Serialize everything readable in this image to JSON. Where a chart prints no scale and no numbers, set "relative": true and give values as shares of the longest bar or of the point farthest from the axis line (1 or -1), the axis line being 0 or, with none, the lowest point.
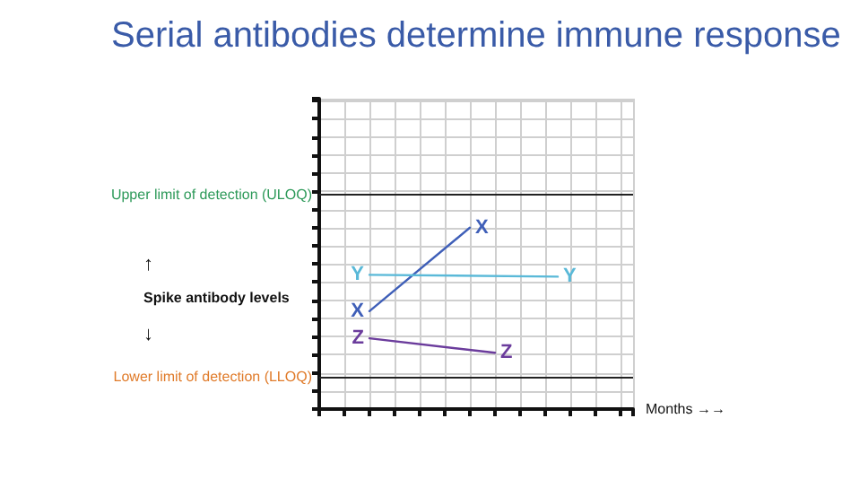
{
  "chart_data": {
    "type": "line",
    "relative": true,
    "title": "Serial antibodies determine immune response",
    "xlabel": "Months →→",
    "ylabel": "Spike antibody levels",
    "annotations": [
      "↑",
      "↓"
    ],
    "categories": [
      null,
      null,
      null,
      null,
      null,
      null,
      null,
      null,
      null,
      null,
      null,
      null,
      null,
      null,
      null,
      null,
      null,
      null,
      null,
      null,
      null,
      null,
      null,
      null,
      null,
      null
    ],
    "series": [
      {
        "name": "X",
        "color": "#3f5fb8",
        "values": [
          null,
          null,
          null,
          null,
          0.54,
          null,
          null,
          null,
          null,
          null,
          null,
          null,
          1,
          null,
          null,
          null,
          null,
          null,
          null,
          null,
          null,
          null,
          null,
          null,
          null,
          null
        ]
      },
      {
        "name": "Y",
        "color": "#5ab9d8",
        "values": [
          null,
          null,
          null,
          null,
          0.74,
          null,
          null,
          null,
          null,
          null,
          null,
          null,
          null,
          null,
          null,
          null,
          null,
          null,
          null,
          0.73,
          null,
          null,
          null,
          null,
          null,
          null
        ]
      },
      {
        "name": "Z",
        "color": "#6b3c9c",
        "values": [
          null,
          null,
          null,
          null,
          0.39,
          null,
          null,
          null,
          null,
          null,
          null,
          null,
          null,
          null,
          0.31,
          null,
          null,
          null,
          null,
          null,
          null,
          null,
          null,
          null,
          null,
          null
        ]
      }
    ],
    "ref_lines": [
      {
        "axis": "y",
        "value": 1.18,
        "label": "Upper limit of detection (ULOQ)",
        "color": "#222222"
      },
      {
        "axis": "y",
        "value": 0.18,
        "label": "Lower limit of detection (LLOQ)",
        "color": "#222222"
      }
    ],
    "grid": true,
    "marker": "none",
    "line_style": "solid"
  }
}
